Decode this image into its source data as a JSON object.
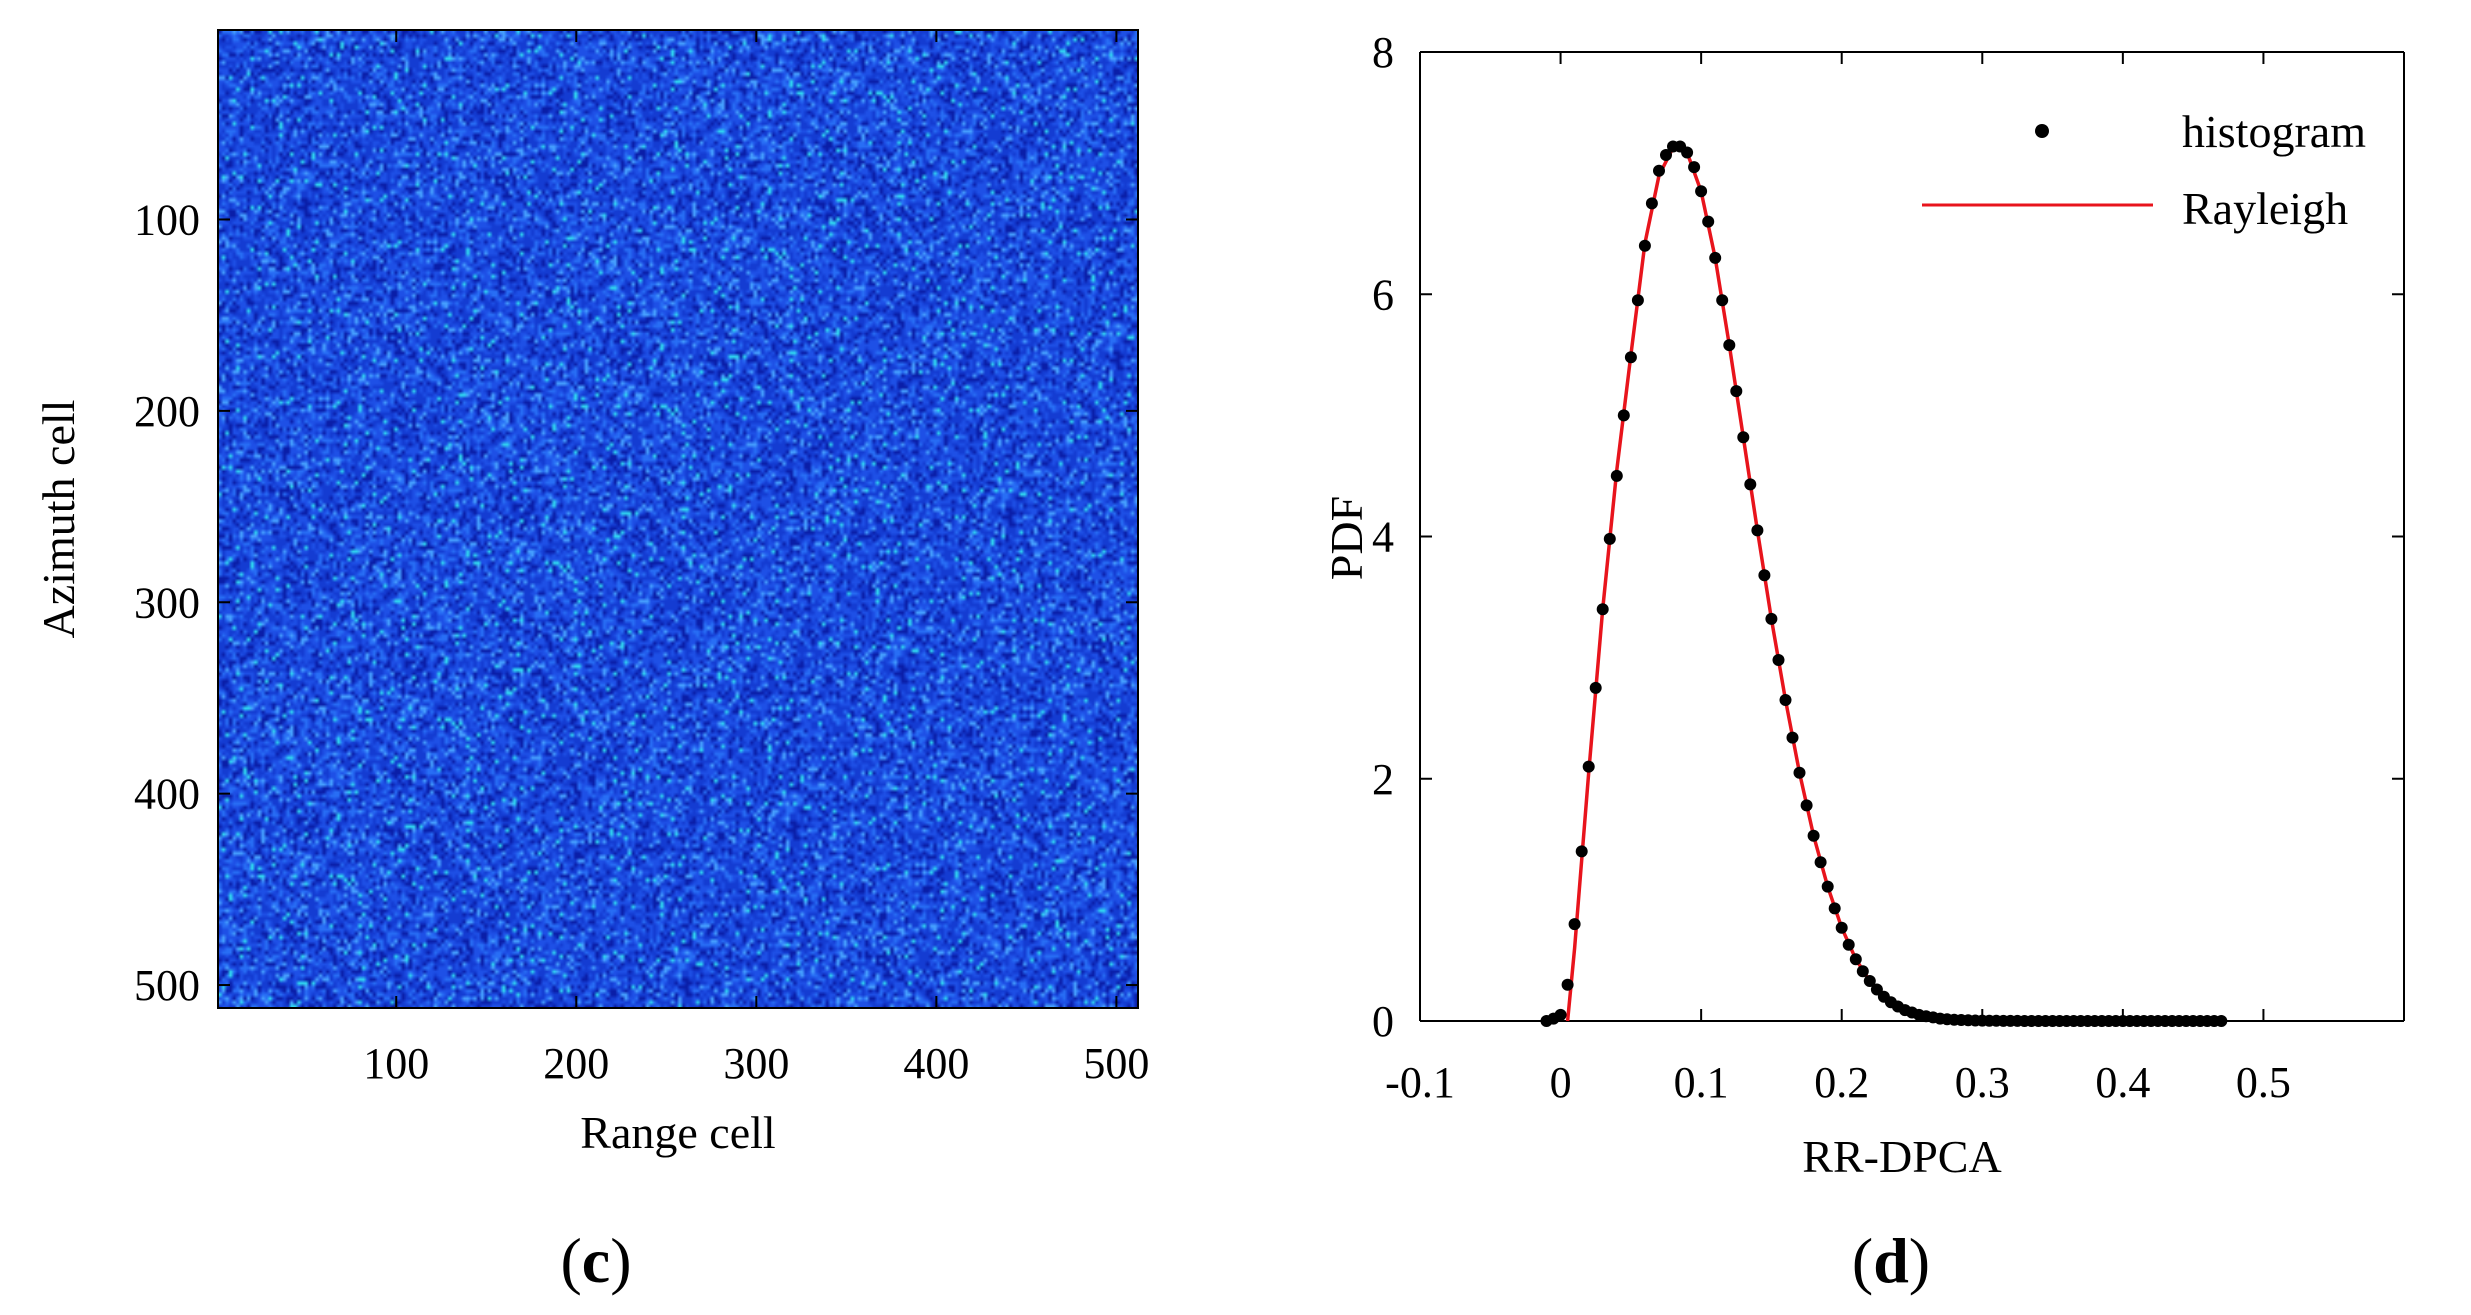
{
  "chart_data": [
    {
      "type": "heatmap",
      "panel_label_open": "(",
      "panel_label": "c",
      "panel_label_close": ")",
      "xlabel": "Range cell",
      "ylabel": "Azimuth cell",
      "xlim": [
        1,
        512
      ],
      "ylim": [
        1,
        512
      ],
      "y_reversed": true,
      "xticks": [
        100,
        200,
        300,
        400,
        500
      ],
      "yticks": [
        100,
        200,
        300,
        400,
        500
      ],
      "grid": false,
      "colormap": "jet",
      "image_appearance": "random speckle noise, predominantly blue with scattered cyan pixels",
      "colors": {
        "dominant": "#1e50e6",
        "dark": "#0a1ea8",
        "light": "#46a0ff",
        "speckle": "#30d8f0"
      }
    },
    {
      "type": "scatter",
      "panel_label_open": "(",
      "panel_label": "d",
      "panel_label_close": ")",
      "xlabel": "RR-DPCA",
      "ylabel": "PDF",
      "xlim": [
        -0.1,
        0.6
      ],
      "ylim": [
        0,
        8
      ],
      "xticks": [
        -0.1,
        0,
        0.1,
        0.2,
        0.3,
        0.4,
        0.5
      ],
      "xtick_labels": [
        "-0.1",
        "0",
        "0.1",
        "0.2",
        "0.3",
        "0.4",
        "0.5"
      ],
      "yticks": [
        0,
        2,
        4,
        6,
        8
      ],
      "ytick_labels": [
        "0",
        "2",
        "4",
        "6",
        "8"
      ],
      "grid": false,
      "legend_position": "top-right",
      "series": [
        {
          "name": "histogram",
          "style": "markers",
          "color": "#000000",
          "x": [
            -0.01,
            -0.005,
            0.0,
            0.005,
            0.01,
            0.015,
            0.02,
            0.025,
            0.03,
            0.035,
            0.04,
            0.045,
            0.05,
            0.055,
            0.06,
            0.065,
            0.07,
            0.075,
            0.08,
            0.085,
            0.09,
            0.095,
            0.1,
            0.105,
            0.11,
            0.115,
            0.12,
            0.125,
            0.13,
            0.135,
            0.14,
            0.145,
            0.15,
            0.155,
            0.16,
            0.165,
            0.17,
            0.175,
            0.18,
            0.185,
            0.19,
            0.195,
            0.2,
            0.205,
            0.21,
            0.215,
            0.22,
            0.225,
            0.23,
            0.235,
            0.24,
            0.245,
            0.25,
            0.255,
            0.26,
            0.265,
            0.27,
            0.275,
            0.28,
            0.285,
            0.29,
            0.295,
            0.3,
            0.305,
            0.31,
            0.315,
            0.32,
            0.325,
            0.33,
            0.335,
            0.34,
            0.345,
            0.35,
            0.355,
            0.36,
            0.365,
            0.37,
            0.375,
            0.38,
            0.385,
            0.39,
            0.395,
            0.4,
            0.405,
            0.41,
            0.415,
            0.42,
            0.425,
            0.43,
            0.435,
            0.44,
            0.445,
            0.45,
            0.455,
            0.46,
            0.465,
            0.47
          ],
          "y": [
            0.0,
            0.02,
            0.05,
            0.3,
            0.8,
            1.4,
            2.1,
            2.75,
            3.4,
            3.98,
            4.5,
            5.0,
            5.48,
            5.95,
            6.4,
            6.75,
            7.02,
            7.15,
            7.22,
            7.22,
            7.17,
            7.05,
            6.85,
            6.6,
            6.3,
            5.95,
            5.58,
            5.2,
            4.82,
            4.43,
            4.05,
            3.68,
            3.32,
            2.98,
            2.65,
            2.34,
            2.05,
            1.78,
            1.53,
            1.31,
            1.11,
            0.93,
            0.77,
            0.63,
            0.51,
            0.41,
            0.33,
            0.26,
            0.2,
            0.155,
            0.12,
            0.09,
            0.07,
            0.05,
            0.04,
            0.03,
            0.02,
            0.015,
            0.01,
            0.008,
            0.006,
            0.004,
            0.003,
            0.002,
            0.002,
            0.001,
            0.001,
            0.001,
            0.0,
            0.0,
            0.0,
            0.0,
            0.0,
            0.0,
            0.0,
            0.0,
            0.0,
            0.0,
            0.0,
            0.0,
            0.0,
            0.0,
            0.0,
            0.0,
            0.0,
            0.0,
            0.0,
            0.0,
            0.0,
            0.0,
            0.0,
            0.0,
            0.0,
            0.0,
            0.0,
            0.0,
            0.0
          ]
        },
        {
          "name": "Rayleigh",
          "style": "line",
          "color": "#e8141c",
          "x": [
            0.005,
            0.01,
            0.02,
            0.03,
            0.04,
            0.05,
            0.06,
            0.07,
            0.08,
            0.085,
            0.09,
            0.1,
            0.11,
            0.12,
            0.13,
            0.14,
            0.15,
            0.16,
            0.17,
            0.18,
            0.19,
            0.2,
            0.21,
            0.22,
            0.23,
            0.24,
            0.25,
            0.26,
            0.27,
            0.28,
            0.29,
            0.3,
            0.32,
            0.34,
            0.36,
            0.38,
            0.4,
            0.42,
            0.44,
            0.46,
            0.47
          ],
          "y": [
            0.0,
            0.6,
            2.05,
            3.4,
            4.55,
            5.5,
            6.42,
            6.98,
            7.21,
            7.23,
            7.17,
            6.85,
            6.3,
            5.58,
            4.82,
            4.05,
            3.32,
            2.65,
            2.05,
            1.53,
            1.11,
            0.77,
            0.51,
            0.33,
            0.2,
            0.12,
            0.07,
            0.04,
            0.02,
            0.01,
            0.006,
            0.003,
            0.001,
            0.0,
            0.0,
            0.0,
            0.0,
            0.0,
            0.0,
            0.0,
            0.0
          ]
        }
      ]
    }
  ]
}
